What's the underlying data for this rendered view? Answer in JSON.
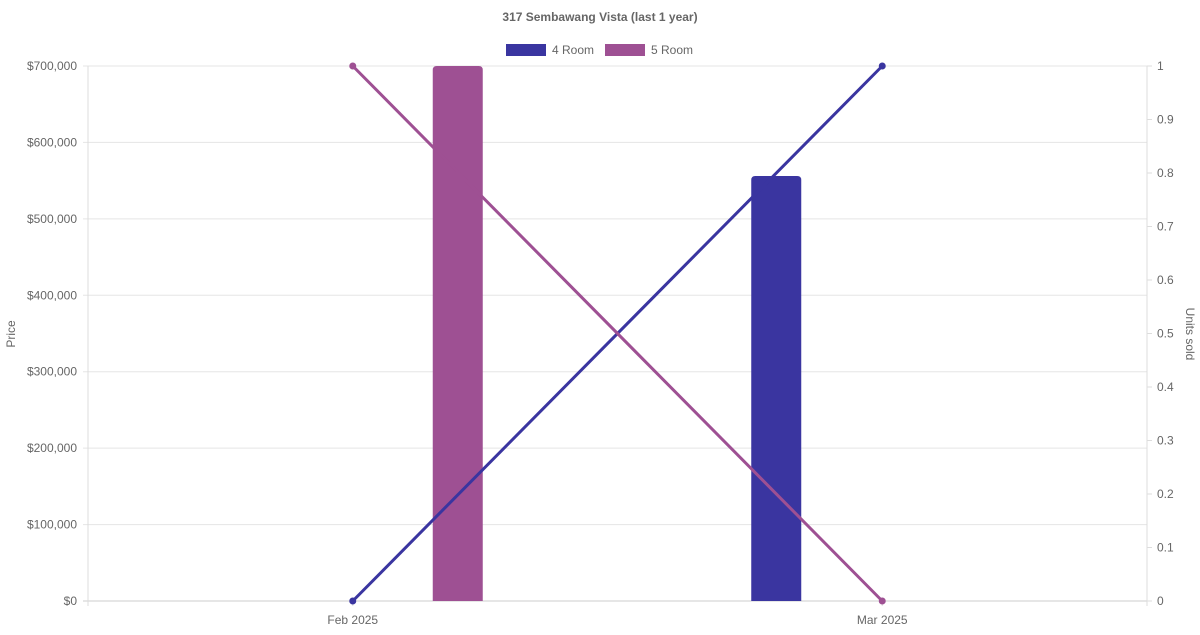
{
  "chart_data": {
    "type": "bar",
    "title": "317 Sembawang Vista (last 1 year)",
    "categories": [
      "Feb 2025",
      "Mar 2025"
    ],
    "ylabel": "Price",
    "y2label": "Units sold",
    "ylim": [
      0,
      700000
    ],
    "y2lim": [
      0,
      1
    ],
    "yticks": [
      "$0",
      "$100,000",
      "$200,000",
      "$300,000",
      "$400,000",
      "$500,000",
      "$600,000",
      "$700,000"
    ],
    "y2ticks": [
      "0",
      "0.1",
      "0.2",
      "0.3",
      "0.4",
      "0.5",
      "0.6",
      "0.7",
      "0.8",
      "0.9",
      "1"
    ],
    "grid": true,
    "legend_position": "top",
    "series": [
      {
        "name": "4 Room",
        "color": "#3a35a0",
        "price": [
          0,
          556000
        ],
        "units_sold": [
          0,
          1
        ]
      },
      {
        "name": "5 Room",
        "color": "#9e5093",
        "price": [
          700000,
          0
        ],
        "units_sold": [
          1,
          0
        ]
      }
    ]
  }
}
